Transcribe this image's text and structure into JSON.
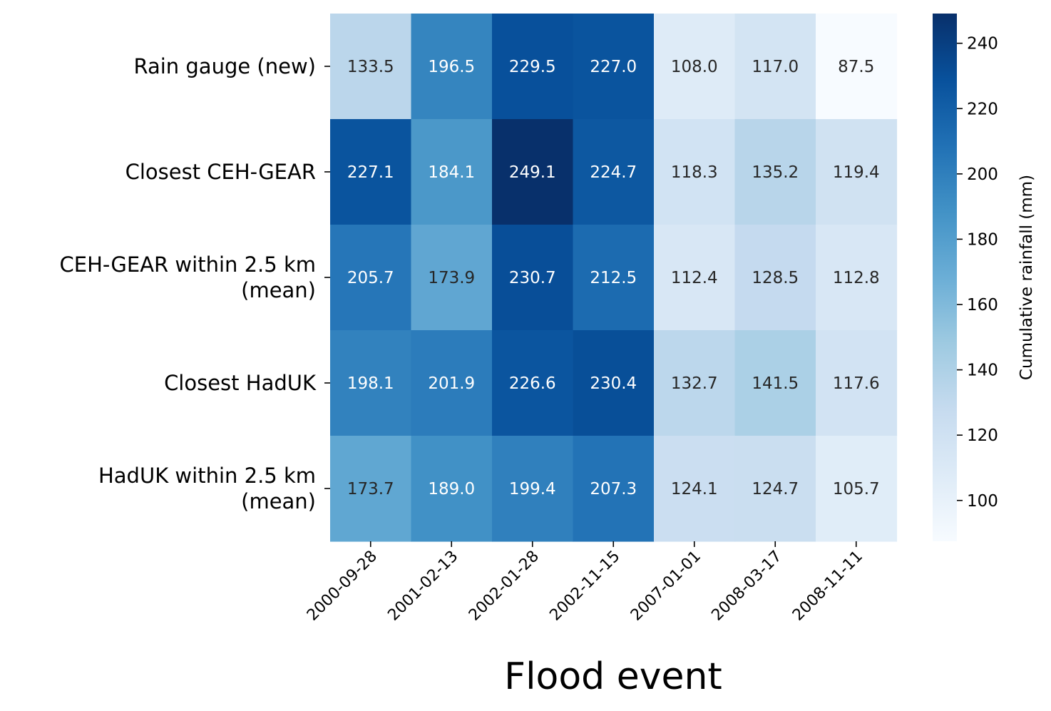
{
  "chart_data": {
    "type": "heatmap",
    "title": "",
    "xlabel": "Flood event",
    "ylabel": "",
    "x_categories": [
      "2000-09-28",
      "2001-02-13",
      "2002-01-28",
      "2002-11-15",
      "2007-01-01",
      "2008-03-17",
      "2008-11-11"
    ],
    "y_categories": [
      [
        "Rain gauge (new)"
      ],
      [
        "Closest CEH-GEAR"
      ],
      [
        "CEH-GEAR within 2.5 km",
        "(mean)"
      ],
      [
        "Closest HadUK"
      ],
      [
        "HadUK within 2.5 km",
        "(mean)"
      ]
    ],
    "values": [
      [
        133.5,
        196.5,
        229.5,
        227.0,
        108.0,
        117.0,
        87.5
      ],
      [
        227.1,
        184.1,
        249.1,
        224.7,
        118.3,
        135.2,
        119.4
      ],
      [
        205.7,
        173.9,
        230.7,
        212.5,
        112.4,
        128.5,
        112.8
      ],
      [
        198.1,
        201.9,
        226.6,
        230.4,
        132.7,
        141.5,
        117.6
      ],
      [
        173.7,
        189.0,
        199.4,
        207.3,
        124.1,
        124.7,
        105.7
      ]
    ],
    "value_format": "one decimal",
    "colormap": "Blues",
    "colorbar": {
      "label": "Cumulative rainfall (mm)",
      "range": [
        87.5,
        249.1
      ],
      "ticks": [
        100,
        120,
        140,
        160,
        180,
        200,
        220,
        240
      ]
    }
  }
}
